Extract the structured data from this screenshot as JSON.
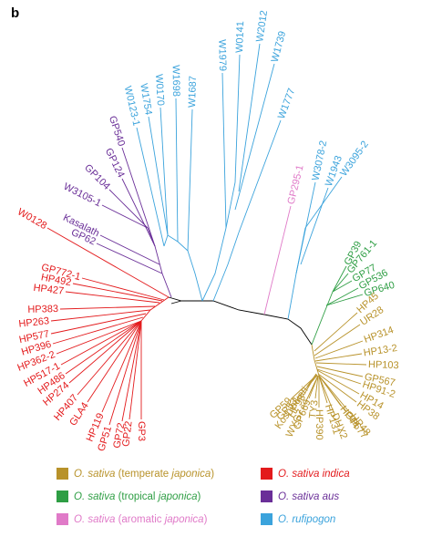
{
  "panel_label": "b",
  "colors": {
    "temperate": "#b8922a",
    "tropical": "#2e9e44",
    "aromatic": "#e07ac8",
    "indica": "#e31a1c",
    "aus": "#6a2f98",
    "rufipogon": "#3ba3dc",
    "core": "#000000"
  },
  "legend": [
    {
      "group": "temperate",
      "species": "O. sativa",
      "sub_plain": " (temperate ",
      "sub_italic": "japonica",
      "sub_end": ")"
    },
    {
      "group": "indica",
      "species": "O. sativa indica",
      "sub_plain": "",
      "sub_italic": "",
      "sub_end": ""
    },
    {
      "group": "tropical",
      "species": "O. sativa",
      "sub_plain": " (tropical ",
      "sub_italic": "japonica",
      "sub_end": ")"
    },
    {
      "group": "aus",
      "species": "O. sativa aus",
      "sub_plain": "",
      "sub_italic": "",
      "sub_end": ""
    },
    {
      "group": "aromatic",
      "species": "O. sativa",
      "sub_plain": " (aromatic ",
      "sub_italic": "japonica",
      "sub_end": ")"
    },
    {
      "group": "rufipogon",
      "species": "O. rufipogon",
      "sub_plain": "",
      "sub_italic": "",
      "sub_end": ""
    }
  ],
  "tree": {
    "rufipogon": [
      "W0123-1",
      "W1754",
      "W0170",
      "W1698",
      "W1687",
      "W1979",
      "W0141",
      "W2012",
      "W1739",
      "W1777",
      "W3078-2",
      "W1943",
      "W3095-2"
    ],
    "aus": [
      "GP540",
      "GP124",
      "GP104",
      "W3105-1",
      "Kasalath",
      "GP62"
    ],
    "aromatic": [
      "GP295-1"
    ],
    "tropical": [
      "GP39",
      "GP761-1",
      "GP77",
      "GP536",
      "GP640"
    ],
    "temperate": [
      "HP45",
      "UR28",
      "HP314",
      "HP13-2",
      "HP103",
      "GP567",
      "HP91-2",
      "HP14",
      "HP38",
      "HP48",
      "GP677",
      "HP44",
      "DHX2",
      "HP131",
      "HP390",
      "TY3",
      "GP669",
      "WYG7",
      "GP53",
      "GP59",
      "HP98",
      "Koshihikari"
    ],
    "indica": [
      "W0128",
      "GP772-1",
      "HP492",
      "HP427",
      "HP383",
      "HP263",
      "HP577",
      "HP396",
      "HP362-2",
      "HP517-1",
      "HP486",
      "HP274",
      "HP407",
      "GLA4",
      "HP119",
      "GP51",
      "GP72",
      "GP22",
      "GP3"
    ]
  }
}
